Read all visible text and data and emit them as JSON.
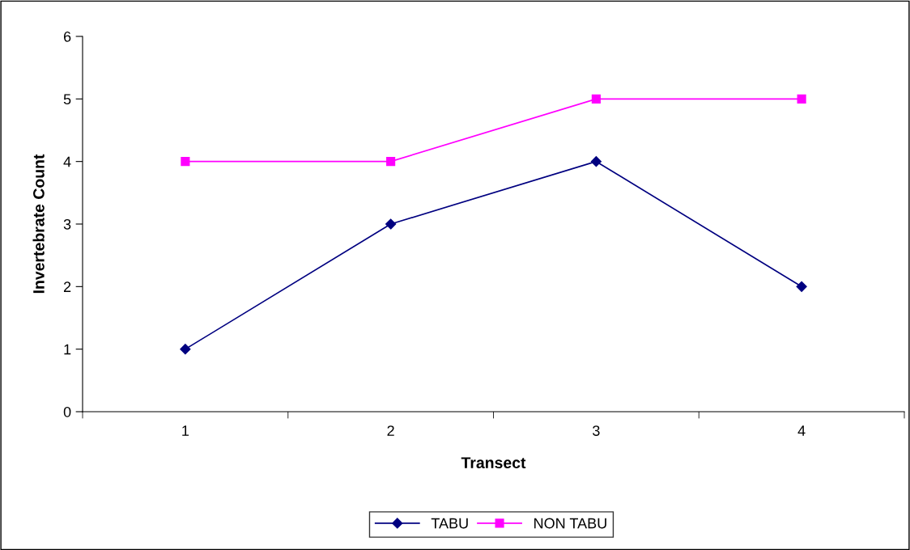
{
  "chart_data": {
    "type": "line",
    "xlabel": "Transect",
    "ylabel": "Invertebrate Count",
    "categories": [
      "1",
      "2",
      "3",
      "4"
    ],
    "series": [
      {
        "name": "TABU",
        "color": "#000080",
        "marker": "diamond",
        "values": [
          1,
          3,
          4,
          2
        ]
      },
      {
        "name": "NON TABU",
        "color": "#ff00ff",
        "marker": "square",
        "values": [
          4,
          4,
          5,
          5
        ]
      }
    ],
    "ylim": [
      0,
      6
    ],
    "yticks": [
      0,
      1,
      2,
      3,
      4,
      5,
      6
    ],
    "grid": false,
    "legend": "bottom",
    "line_style": "solid"
  }
}
